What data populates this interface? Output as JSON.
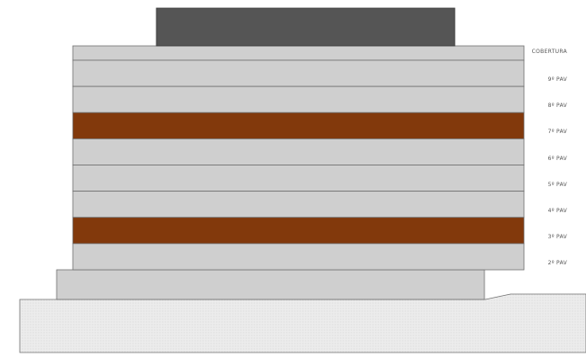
{
  "colors": {
    "roof_block": "#555555",
    "floor_default": "#cfcfcf",
    "floor_highlight": "#82390c",
    "podium": "#cfcfcf",
    "terrain": "#ececec",
    "line": "#707070"
  },
  "floors": [
    {
      "label": "COBERTURA",
      "highlighted": false
    },
    {
      "label": "9º PAV",
      "highlighted": false
    },
    {
      "label": "8º PAV",
      "highlighted": false
    },
    {
      "label": "7º PAV",
      "highlighted": true
    },
    {
      "label": "6º PAV",
      "highlighted": false
    },
    {
      "label": "5º PAV",
      "highlighted": false
    },
    {
      "label": "4º PAV",
      "highlighted": false
    },
    {
      "label": "3º PAV",
      "highlighted": true
    },
    {
      "label": "2º PAV",
      "highlighted": false
    }
  ]
}
